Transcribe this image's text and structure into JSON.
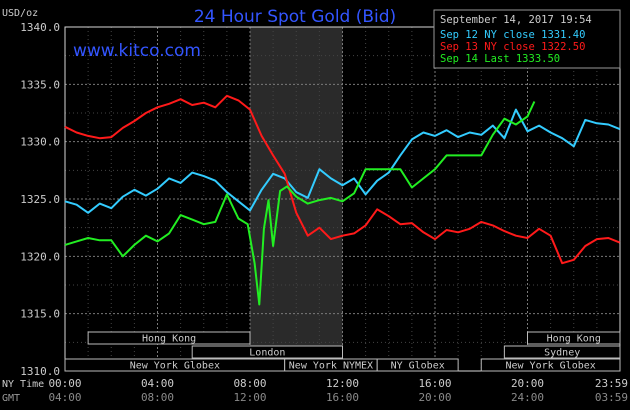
{
  "header": {
    "title": "24 Hour Spot Gold (Bid)",
    "watermark": "www.kitco.com",
    "timestamp": "September 14, 2017 19:54",
    "unit_label": "USD/oz"
  },
  "legend": [
    {
      "text": "Sep 12 NY close 1331.40",
      "color": "#33ccff"
    },
    {
      "text": "Sep 13 NY close 1322.50",
      "color": "#ff1a1a"
    },
    {
      "text": "Sep 14 Last 1333.50",
      "color": "#22ee22"
    }
  ],
  "time_axis": {
    "ny_time_label": "NY Time",
    "gmt_label": "GMT",
    "ny_ticks": [
      "00:00",
      "04:00",
      "08:00",
      "12:00",
      "16:00",
      "20:00",
      "23:59"
    ],
    "gmt_ticks": [
      "04:00",
      "08:00",
      "12:00",
      "16:00",
      "20:00",
      "24:00",
      "03:59"
    ]
  },
  "sessions": [
    {
      "name": "Hong Kong",
      "row": 0,
      "start": 1.0,
      "end": 8.0
    },
    {
      "name": "London",
      "row": 1,
      "start": 5.5,
      "end": 12.0
    },
    {
      "name": "New York Globex",
      "row": 2,
      "start": 0.0,
      "end": 9.5
    },
    {
      "name": "New York NYMEX",
      "row": 2,
      "start": 9.5,
      "end": 13.5
    },
    {
      "name": "NY Globex",
      "row": 2,
      "start": 13.5,
      "end": 17.0
    },
    {
      "name": "Hong Kong",
      "row": 0,
      "start": 20.0,
      "end": 24.0
    },
    {
      "name": "Sydney",
      "row": 1,
      "start": 19.0,
      "end": 24.0
    },
    {
      "name": "New York Globex",
      "row": 2,
      "start": 18.0,
      "end": 24.0
    }
  ],
  "chart_data": {
    "type": "line",
    "title": "24 Hour Spot Gold (Bid)",
    "ylabel": "USD/oz",
    "xlabel": "NY Time",
    "ylim": [
      1310.0,
      1340.0
    ],
    "xlim": [
      0,
      24
    ],
    "yticks": [
      "1310.0",
      "1315.0",
      "1320.0",
      "1325.0",
      "1330.0",
      "1335.0",
      "1340.0"
    ],
    "shaded_region": [
      8.0,
      12.0
    ],
    "grid": true,
    "legend_position": "top-right",
    "series": [
      {
        "name": "Sep 12 NY close 1331.40",
        "color": "#33ccff",
        "x": [
          0,
          0.5,
          1.0,
          1.5,
          2.0,
          2.5,
          3.0,
          3.5,
          4.0,
          4.5,
          5.0,
          5.5,
          6.0,
          6.5,
          7.0,
          7.5,
          8.0,
          8.5,
          9.0,
          9.5,
          10.0,
          10.5,
          11.0,
          11.5,
          12.0,
          12.5,
          13.0,
          13.5,
          14.0,
          14.5,
          15.0,
          15.5,
          16.0,
          16.5,
          17.0,
          17.5,
          18.0,
          18.5,
          19.0,
          19.5,
          20.0,
          20.5,
          21.0,
          21.5,
          22.0,
          22.5,
          23.0,
          23.5,
          23.99
        ],
        "y": [
          1324.8,
          1324.5,
          1323.8,
          1324.6,
          1324.2,
          1325.2,
          1325.8,
          1325.3,
          1325.9,
          1326.8,
          1326.4,
          1327.3,
          1327.0,
          1326.6,
          1325.6,
          1324.8,
          1324.0,
          1325.8,
          1327.2,
          1326.8,
          1325.6,
          1325.1,
          1327.6,
          1326.8,
          1326.2,
          1326.8,
          1325.4,
          1326.6,
          1327.3,
          1328.8,
          1330.2,
          1330.8,
          1330.5,
          1331.0,
          1330.4,
          1330.8,
          1330.6,
          1331.4,
          1330.3,
          1332.8,
          1330.9,
          1331.4,
          1330.8,
          1330.3,
          1329.6,
          1331.9,
          1331.6,
          1331.5,
          1331.1
        ]
      },
      {
        "name": "Sep 13 NY close 1322.50",
        "color": "#ff1a1a",
        "x": [
          0,
          0.5,
          1.0,
          1.5,
          2.0,
          2.5,
          3.0,
          3.5,
          4.0,
          4.5,
          5.0,
          5.5,
          6.0,
          6.5,
          7.0,
          7.5,
          8.0,
          8.5,
          9.0,
          9.5,
          10.0,
          10.5,
          11.0,
          11.5,
          12.0,
          12.5,
          13.0,
          13.5,
          14.0,
          14.5,
          15.0,
          15.5,
          16.0,
          16.5,
          17.0,
          17.5,
          18.0,
          18.5,
          19.0,
          19.5,
          20.0,
          20.5,
          21.0,
          21.5,
          22.0,
          22.5,
          23.0,
          23.5,
          23.99
        ],
        "y": [
          1331.3,
          1330.8,
          1330.5,
          1330.3,
          1330.4,
          1331.2,
          1331.8,
          1332.5,
          1333.0,
          1333.3,
          1333.7,
          1333.2,
          1333.4,
          1333.0,
          1334.0,
          1333.6,
          1332.8,
          1330.5,
          1328.8,
          1327.2,
          1323.8,
          1321.8,
          1322.5,
          1321.5,
          1321.8,
          1322.0,
          1322.7,
          1324.1,
          1323.5,
          1322.8,
          1322.9,
          1322.1,
          1321.5,
          1322.3,
          1322.1,
          1322.4,
          1323.0,
          1322.7,
          1322.2,
          1321.8,
          1321.6,
          1322.4,
          1321.8,
          1319.4,
          1319.7,
          1320.9,
          1321.5,
          1321.6,
          1321.2
        ]
      },
      {
        "name": "Sep 14 Last 1333.50",
        "color": "#22ee22",
        "x": [
          0,
          0.5,
          1.0,
          1.5,
          2.0,
          2.5,
          3.0,
          3.5,
          4.0,
          4.5,
          5.0,
          5.5,
          6.0,
          6.5,
          7.0,
          7.5,
          7.9,
          8.2,
          8.4,
          8.6,
          8.8,
          9.0,
          9.3,
          9.6,
          10.0,
          10.5,
          11.0,
          11.5,
          12.0,
          12.5,
          13.0,
          13.5,
          14.0,
          14.5,
          15.0,
          15.5,
          16.0,
          16.5,
          17.0,
          17.5,
          18.0,
          18.5,
          19.0,
          19.5,
          20.0,
          20.3
        ],
        "y": [
          1321.0,
          1321.3,
          1321.6,
          1321.4,
          1321.4,
          1320.0,
          1321.0,
          1321.8,
          1321.3,
          1322.0,
          1323.6,
          1323.2,
          1322.8,
          1323.0,
          1325.4,
          1323.3,
          1322.8,
          1319.4,
          1315.8,
          1322.4,
          1324.9,
          1320.9,
          1325.7,
          1326.1,
          1325.2,
          1324.6,
          1324.9,
          1325.1,
          1324.8,
          1325.5,
          1327.6,
          1327.6,
          1327.6,
          1327.6,
          1326.0,
          1326.8,
          1327.6,
          1328.8,
          1328.8,
          1328.8,
          1328.8,
          1330.6,
          1332.0,
          1331.5,
          1332.2,
          1333.5
        ]
      }
    ]
  }
}
